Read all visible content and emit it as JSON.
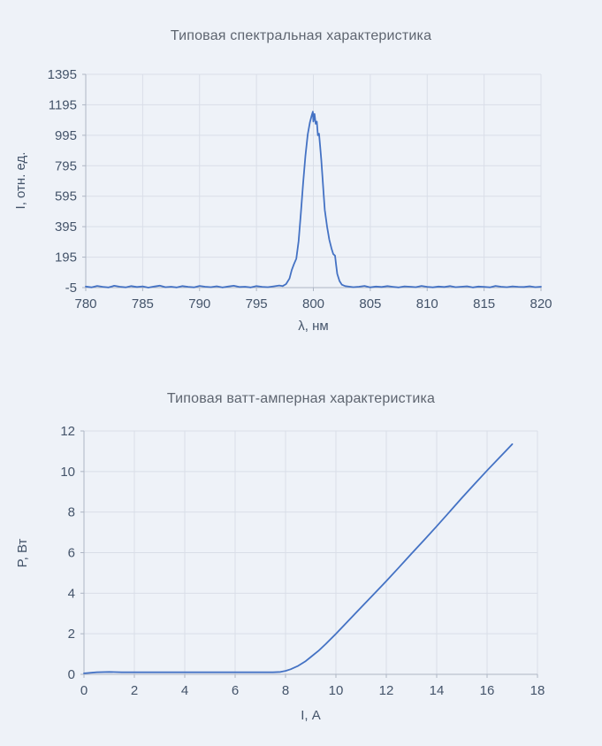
{
  "colors": {
    "background": "#eef2f8",
    "line": "#4472c4",
    "grid": "#d9dee8",
    "axis": "#aeb6c4",
    "title": "#5e6570",
    "label": "#44546a"
  },
  "chart_data": [
    {
      "type": "line",
      "title": "Типовая спектральная характеристика",
      "xlabel": "λ, нм",
      "ylabel": "I, отн. ед.",
      "xlim": [
        780,
        820
      ],
      "ylim": [
        -5,
        1395
      ],
      "xticks": [
        780,
        785,
        790,
        795,
        800,
        805,
        810,
        815,
        820
      ],
      "yticks": [
        -5,
        195,
        395,
        595,
        795,
        995,
        1195,
        1395
      ],
      "grid": true,
      "legend": "none",
      "points": [
        [
          780,
          2
        ],
        [
          780.5,
          -3
        ],
        [
          781,
          6
        ],
        [
          781.5,
          0
        ],
        [
          782,
          -4
        ],
        [
          782.5,
          7
        ],
        [
          783,
          1
        ],
        [
          783.5,
          -3
        ],
        [
          784,
          5
        ],
        [
          784.5,
          -1
        ],
        [
          785,
          3
        ],
        [
          785.5,
          -5
        ],
        [
          786,
          2
        ],
        [
          786.5,
          8
        ],
        [
          787,
          -2
        ],
        [
          787.5,
          1
        ],
        [
          788,
          -4
        ],
        [
          788.5,
          5
        ],
        [
          789,
          0
        ],
        [
          789.5,
          -3
        ],
        [
          790,
          6
        ],
        [
          790.5,
          1
        ],
        [
          791,
          -2
        ],
        [
          791.5,
          4
        ],
        [
          792,
          -4
        ],
        [
          792.5,
          2
        ],
        [
          793,
          7
        ],
        [
          793.5,
          -1
        ],
        [
          794,
          1
        ],
        [
          794.5,
          -4
        ],
        [
          795,
          5
        ],
        [
          795.5,
          0
        ],
        [
          796,
          -2
        ],
        [
          796.5,
          3
        ],
        [
          797,
          9
        ],
        [
          797.3,
          5
        ],
        [
          797.6,
          18
        ],
        [
          797.9,
          55
        ],
        [
          798.1,
          110
        ],
        [
          798.3,
          150
        ],
        [
          798.5,
          185
        ],
        [
          798.7,
          300
        ],
        [
          798.9,
          480
        ],
        [
          799.1,
          680
        ],
        [
          799.3,
          860
        ],
        [
          799.5,
          1000
        ],
        [
          799.7,
          1080
        ],
        [
          799.85,
          1125
        ],
        [
          799.95,
          1150
        ],
        [
          800,
          1085
        ],
        [
          800.1,
          1135
        ],
        [
          800.2,
          1070
        ],
        [
          800.3,
          1085
        ],
        [
          800.4,
          995
        ],
        [
          800.5,
          1005
        ],
        [
          800.6,
          920
        ],
        [
          800.7,
          830
        ],
        [
          800.8,
          720
        ],
        [
          800.9,
          610
        ],
        [
          801,
          505
        ],
        [
          801.2,
          395
        ],
        [
          801.4,
          310
        ],
        [
          801.6,
          250
        ],
        [
          801.75,
          215
        ],
        [
          801.9,
          205
        ],
        [
          802,
          140
        ],
        [
          802.1,
          85
        ],
        [
          802.3,
          38
        ],
        [
          802.5,
          14
        ],
        [
          802.8,
          5
        ],
        [
          803,
          3
        ],
        [
          803.5,
          -2
        ],
        [
          804,
          1
        ],
        [
          804.5,
          6
        ],
        [
          805,
          -3
        ],
        [
          805.5,
          2
        ],
        [
          806,
          -1
        ],
        [
          806.5,
          5
        ],
        [
          807,
          0
        ],
        [
          807.5,
          -4
        ],
        [
          808,
          3
        ],
        [
          808.5,
          1
        ],
        [
          809,
          -2
        ],
        [
          809.5,
          6
        ],
        [
          810,
          0
        ],
        [
          810.5,
          -3
        ],
        [
          811,
          2
        ],
        [
          811.5,
          -1
        ],
        [
          812,
          5
        ],
        [
          812.5,
          -2
        ],
        [
          813,
          1
        ],
        [
          813.5,
          4
        ],
        [
          814,
          -4
        ],
        [
          814.5,
          2
        ],
        [
          815,
          0
        ],
        [
          815.5,
          -3
        ],
        [
          816,
          6
        ],
        [
          816.5,
          1
        ],
        [
          817,
          -2
        ],
        [
          817.5,
          3
        ],
        [
          818,
          0
        ],
        [
          818.5,
          -1
        ],
        [
          819,
          4
        ],
        [
          819.5,
          -2
        ],
        [
          820,
          1
        ]
      ]
    },
    {
      "type": "line",
      "title": "Типовая ватт-амперная характеристика",
      "xlabel": "I, А",
      "ylabel": "P, Вт",
      "xlim": [
        0,
        18
      ],
      "ylim": [
        0,
        12
      ],
      "xticks": [
        0,
        2,
        4,
        6,
        8,
        10,
        12,
        14,
        16,
        18
      ],
      "yticks": [
        0,
        2,
        4,
        6,
        8,
        10,
        12
      ],
      "grid": true,
      "legend": "none",
      "points": [
        [
          0,
          0.05
        ],
        [
          0.5,
          0.1
        ],
        [
          1,
          0.12
        ],
        [
          1.5,
          0.1
        ],
        [
          2,
          0.1
        ],
        [
          2.5,
          0.1
        ],
        [
          3,
          0.1
        ],
        [
          3.5,
          0.1
        ],
        [
          4,
          0.1
        ],
        [
          4.5,
          0.1
        ],
        [
          5,
          0.1
        ],
        [
          5.5,
          0.1
        ],
        [
          6,
          0.1
        ],
        [
          6.5,
          0.1
        ],
        [
          7,
          0.1
        ],
        [
          7.5,
          0.1
        ],
        [
          7.8,
          0.12
        ],
        [
          8,
          0.17
        ],
        [
          8.2,
          0.25
        ],
        [
          8.5,
          0.42
        ],
        [
          8.8,
          0.65
        ],
        [
          9,
          0.85
        ],
        [
          9.3,
          1.15
        ],
        [
          9.6,
          1.5
        ],
        [
          10,
          2.0
        ],
        [
          10.5,
          2.65
        ],
        [
          11,
          3.3
        ],
        [
          11.5,
          3.95
        ],
        [
          12,
          4.6
        ],
        [
          12.5,
          5.27
        ],
        [
          13,
          5.95
        ],
        [
          13.5,
          6.62
        ],
        [
          14,
          7.3
        ],
        [
          14.5,
          8.0
        ],
        [
          15,
          8.7
        ],
        [
          15.5,
          9.38
        ],
        [
          16,
          10.05
        ],
        [
          16.5,
          10.7
        ],
        [
          17,
          11.35
        ]
      ]
    }
  ]
}
